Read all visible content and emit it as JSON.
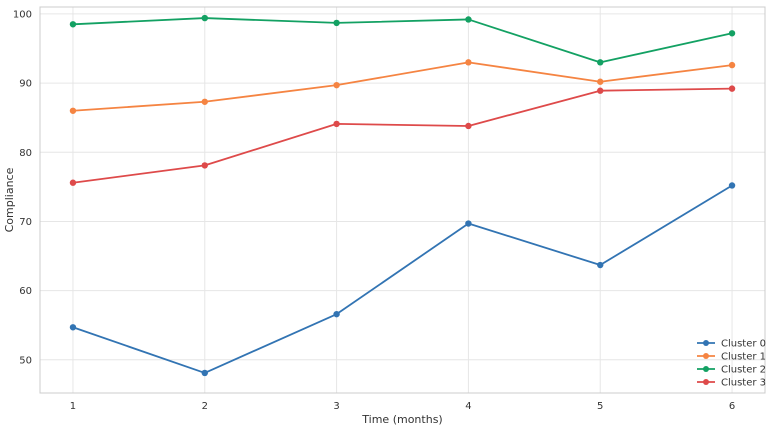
{
  "chart_data": {
    "type": "line",
    "title": "",
    "xlabel": "Time (months)",
    "ylabel": "Compliance",
    "x": [
      1,
      2,
      3,
      4,
      5,
      6
    ],
    "xlim": [
      0.75,
      6.25
    ],
    "ylim": [
      45.2,
      101.0
    ],
    "yticks": [
      50,
      60,
      70,
      80,
      90,
      100
    ],
    "grid": true,
    "legend_position": "bottom-right",
    "series": [
      {
        "name": "Cluster 0",
        "color": "#3274b3",
        "values": [
          54.7,
          48.1,
          56.6,
          69.7,
          63.7,
          75.2
        ]
      },
      {
        "name": "Cluster 1",
        "color": "#f58442",
        "values": [
          86.0,
          87.3,
          89.7,
          93.0,
          90.2,
          92.6
        ]
      },
      {
        "name": "Cluster 2",
        "color": "#13a163",
        "values": [
          98.5,
          99.4,
          98.7,
          99.2,
          93.0,
          97.2
        ]
      },
      {
        "name": "Cluster 3",
        "color": "#de4a4a",
        "values": [
          75.6,
          78.1,
          84.1,
          83.8,
          88.9,
          89.2
        ]
      }
    ]
  }
}
